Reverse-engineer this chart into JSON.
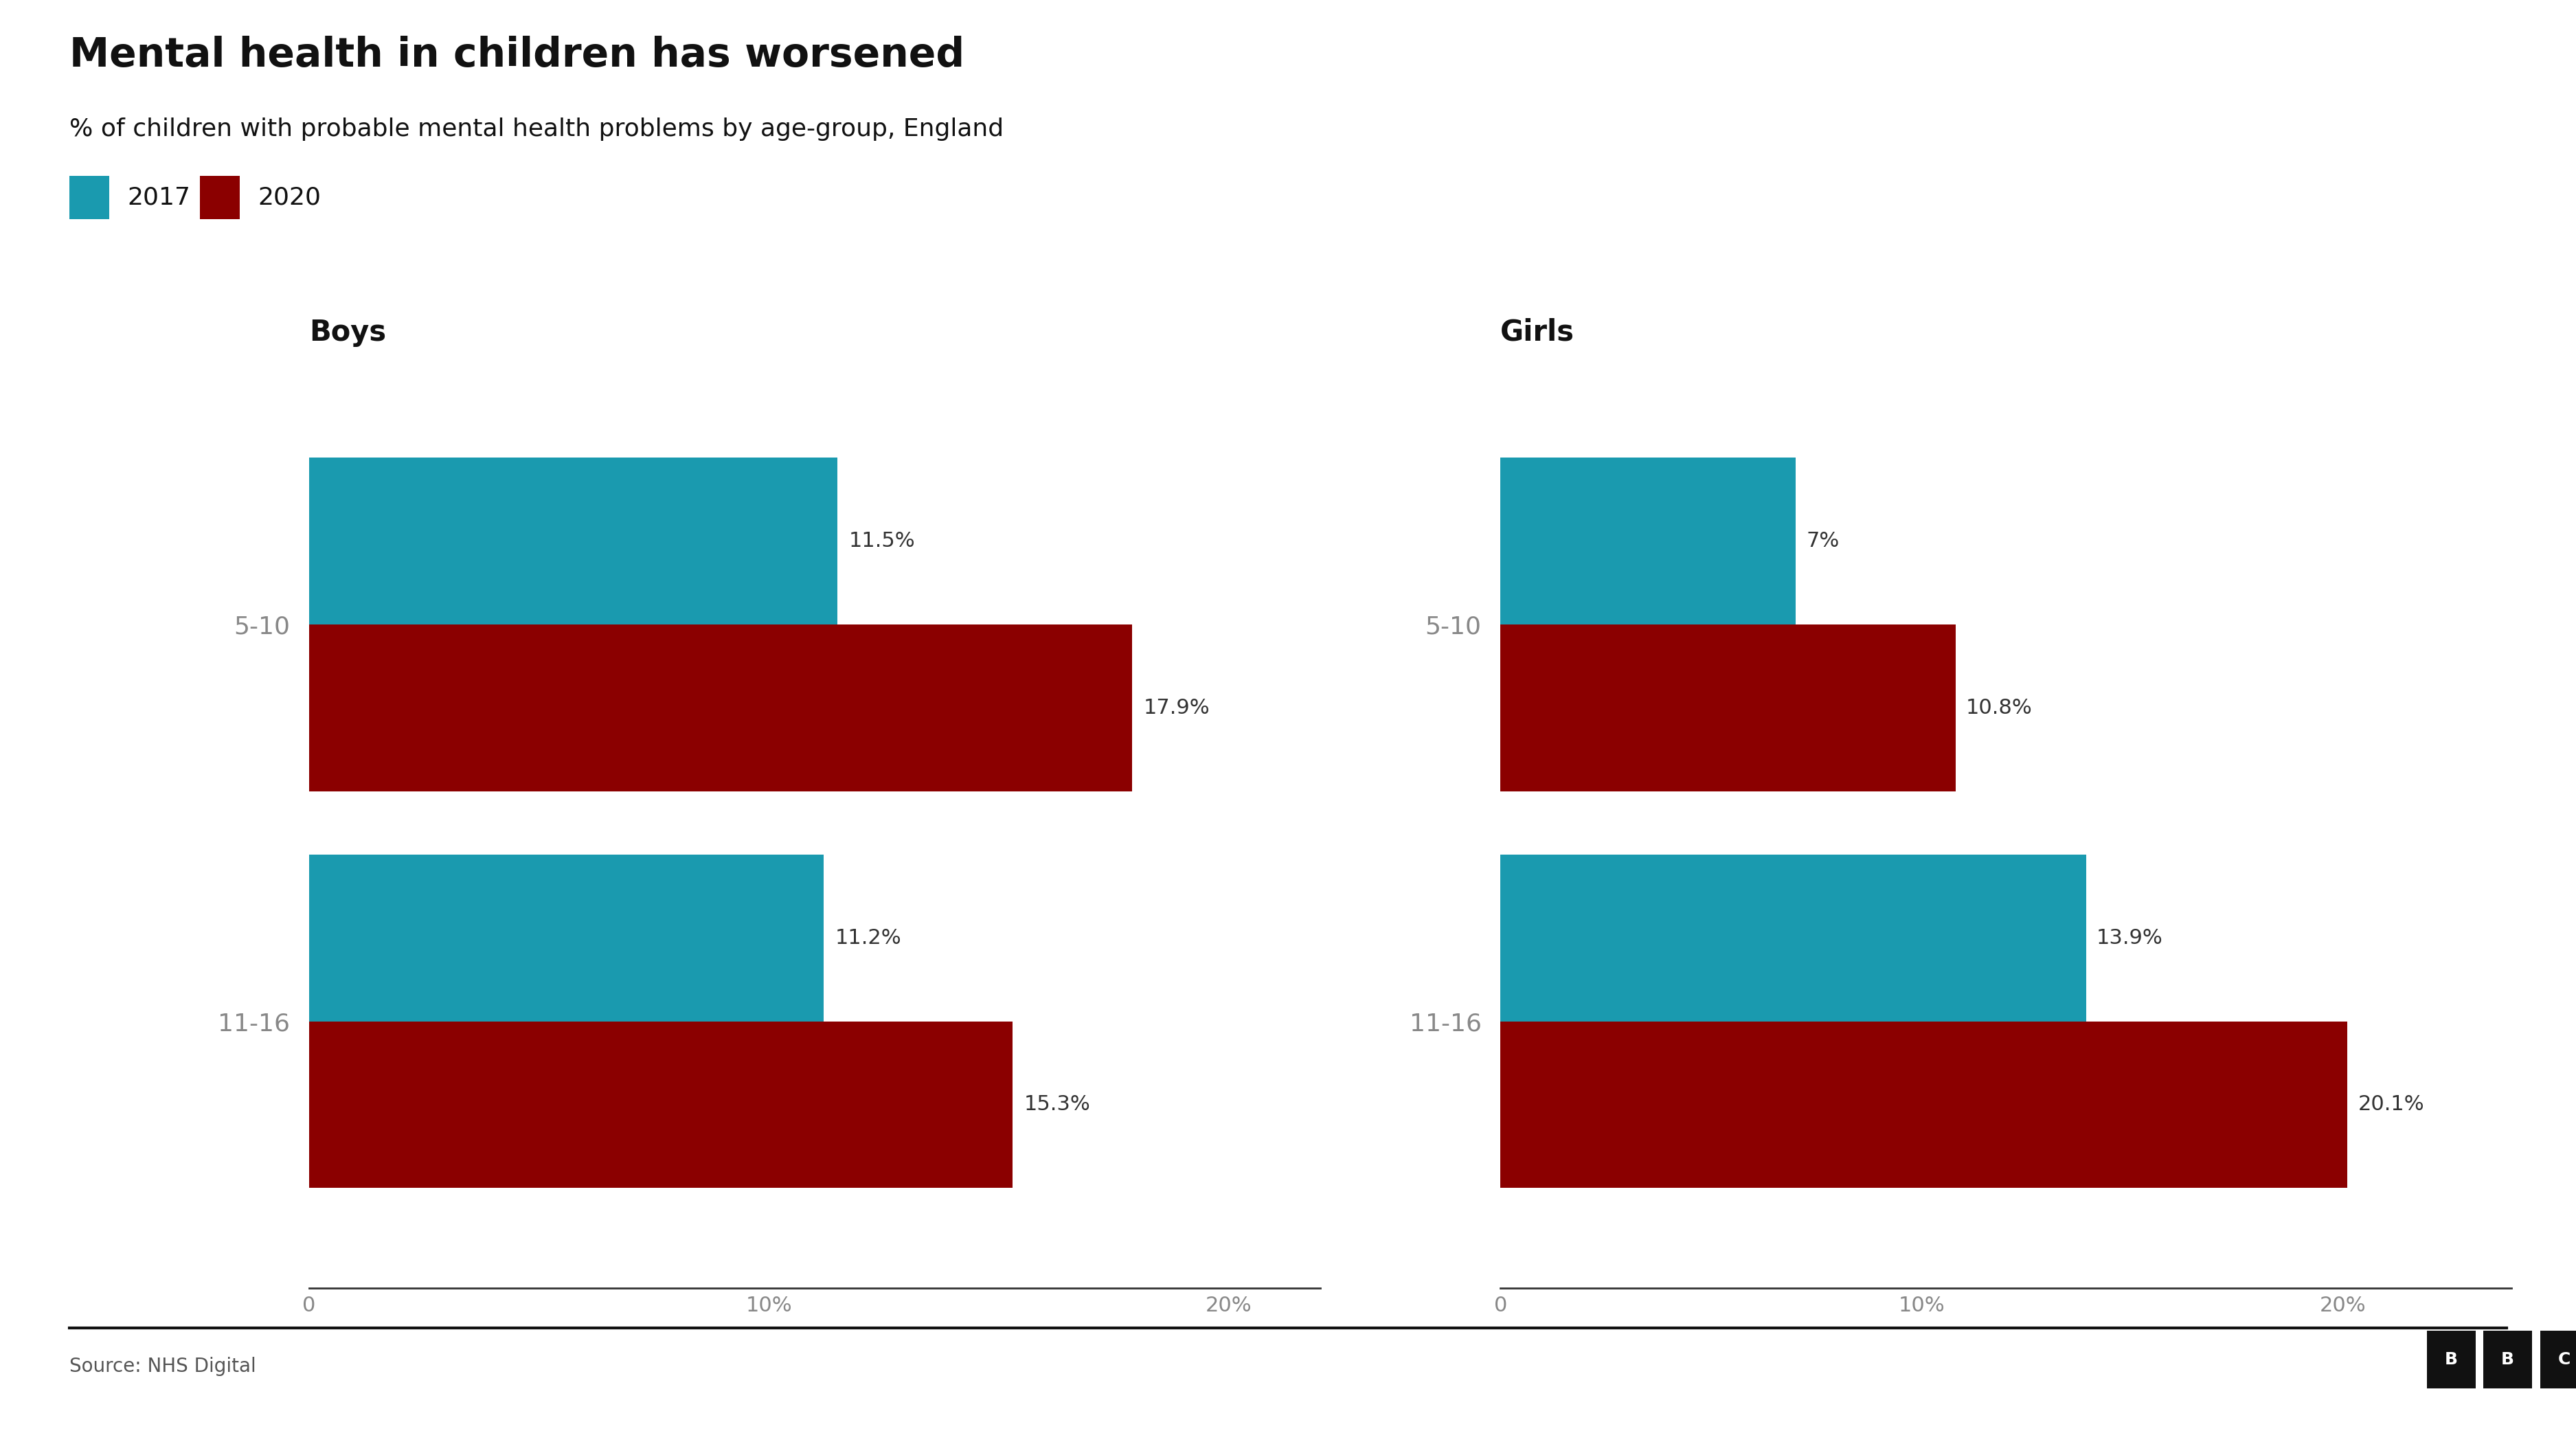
{
  "title": "Mental health in children has worsened",
  "subtitle": "% of children with probable mental health problems by age-group, England",
  "legend_labels": [
    "2017",
    "2020"
  ],
  "legend_colors": [
    "#1a9aaf",
    "#8b0000"
  ],
  "boys": {
    "title": "Boys",
    "categories": [
      "5-10",
      "11-16"
    ],
    "values_2017": [
      11.5,
      11.2
    ],
    "values_2020": [
      17.9,
      15.3
    ],
    "labels_2017": [
      "11.5%",
      "11.2%"
    ],
    "labels_2020": [
      "17.9%",
      "15.3%"
    ],
    "xlim": [
      0,
      22
    ],
    "xticks": [
      0,
      10,
      20
    ],
    "xtick_labels": [
      "0",
      "10%",
      "20%"
    ]
  },
  "girls": {
    "title": "Girls",
    "categories": [
      "5-10",
      "11-16"
    ],
    "values_2017": [
      7.0,
      13.9
    ],
    "values_2020": [
      10.8,
      20.1
    ],
    "labels_2017": [
      "7%",
      "13.9%"
    ],
    "labels_2020": [
      "10.8%",
      "20.1%"
    ],
    "xlim": [
      0,
      24
    ],
    "xticks": [
      0,
      10,
      20
    ],
    "xtick_labels": [
      "0",
      "10%",
      "20%"
    ]
  },
  "color_2017": "#1a9aaf",
  "color_2020": "#8b0000",
  "background_color": "#ffffff",
  "source_text": "Source: NHS Digital",
  "title_fontsize": 42,
  "subtitle_fontsize": 26,
  "legend_fontsize": 26,
  "axis_title_fontsize": 30,
  "tick_fontsize": 22,
  "label_fontsize": 22,
  "category_fontsize": 26,
  "source_fontsize": 20,
  "bar_height": 0.42
}
